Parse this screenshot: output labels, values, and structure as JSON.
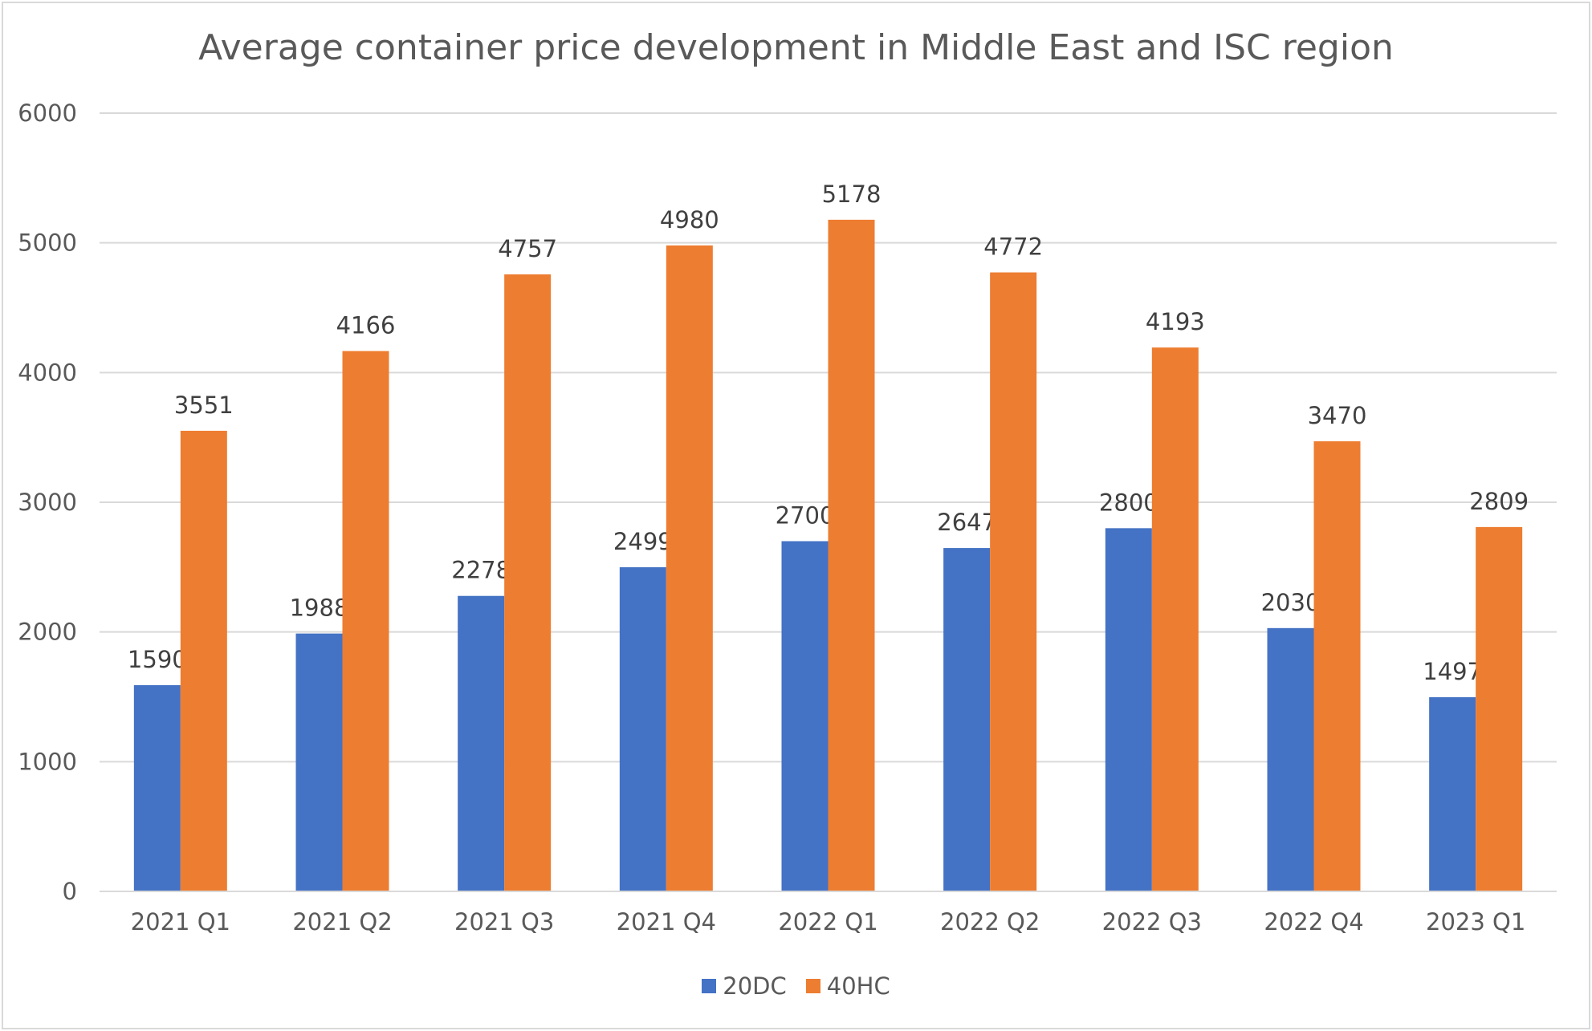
{
  "chart_data": {
    "type": "bar",
    "title": "Average container price development in Middle East and ISC region",
    "xlabel": "",
    "ylabel": "",
    "categories": [
      "2021 Q1",
      "2021 Q2",
      "2021 Q3",
      "2021 Q4",
      "2022 Q1",
      "2022 Q2",
      "2022 Q3",
      "2022 Q4",
      "2023 Q1"
    ],
    "series": [
      {
        "name": "20DC",
        "color": "#4472c4",
        "values": [
          1590,
          1988,
          2278,
          2499,
          2700,
          2647,
          2800,
          2030,
          1497
        ]
      },
      {
        "name": "40HC",
        "color": "#ed7d31",
        "values": [
          3551,
          4166,
          4757,
          4980,
          5178,
          4772,
          4193,
          3470,
          2809
        ]
      }
    ],
    "ylim": [
      0,
      6000
    ],
    "yticks": [
      "0",
      "1000",
      "2000",
      "3000",
      "4000",
      "5000",
      "6000"
    ],
    "grid": true,
    "data_labels": true,
    "legend_position": "bottom"
  }
}
